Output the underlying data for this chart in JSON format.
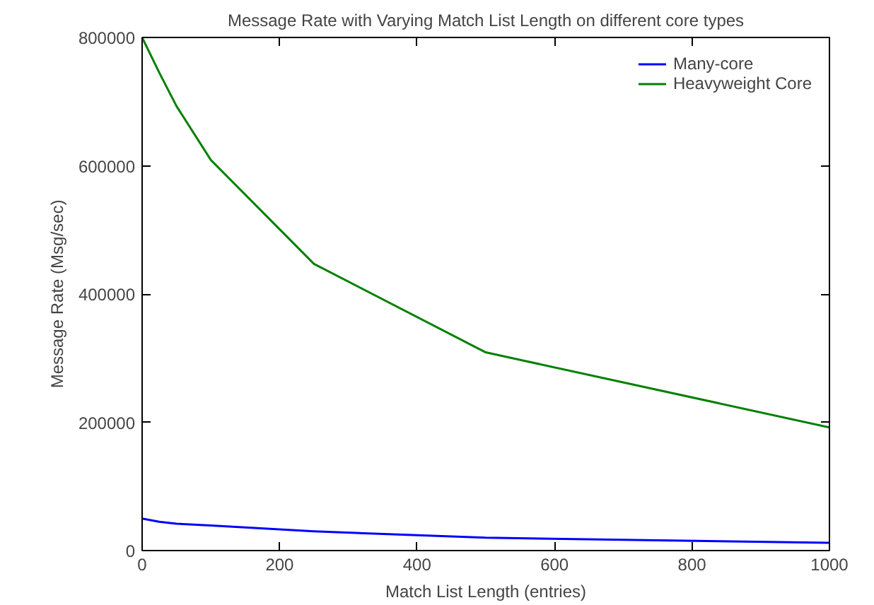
{
  "chart_data": {
    "type": "line",
    "title": "Message Rate with Varying Match List Length on different core types",
    "xlabel": "Match List Length (entries)",
    "ylabel": "Message Rate (Msg/sec)",
    "x": [
      0,
      25,
      50,
      100,
      250,
      500,
      1000
    ],
    "series": [
      {
        "name": "Many-core",
        "color": "#0000ff",
        "values": [
          50000,
          45000,
          42000,
          39000,
          30000,
          20000,
          12000
        ]
      },
      {
        "name": "Heavyweight Core",
        "color": "#008000",
        "values": [
          800000,
          745000,
          693000,
          609000,
          447000,
          309000,
          192000
        ]
      }
    ],
    "xlim": [
      0,
      1000
    ],
    "ylim": [
      0,
      800000
    ],
    "xticks": [
      0,
      200,
      400,
      600,
      800,
      1000
    ],
    "yticks": [
      0,
      200000,
      400000,
      600000,
      800000
    ],
    "grid": false,
    "legend": "top right",
    "marker": "none",
    "line_style": "solid"
  }
}
